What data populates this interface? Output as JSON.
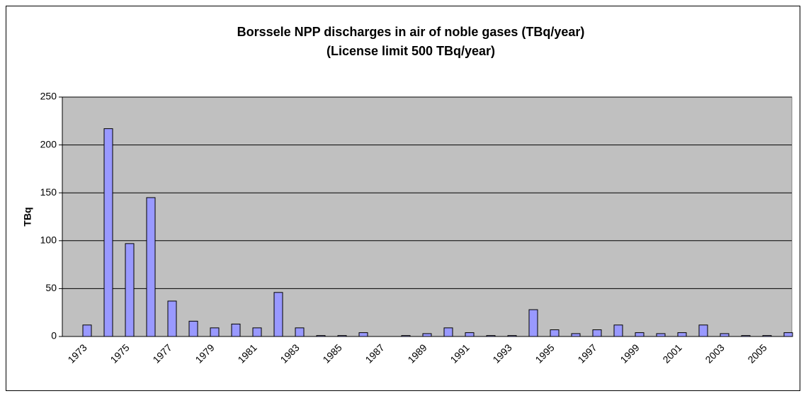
{
  "chart_data": {
    "type": "bar",
    "title": "Borssele NPP discharges in air of noble gases (TBq/year)",
    "subtitle": "(License limit  500 TBq/year)",
    "y_label": "TBq",
    "categories": [
      "1973",
      null,
      "1975",
      null,
      "1977",
      null,
      "1979",
      null,
      "1981",
      null,
      "1983",
      null,
      "1985",
      null,
      "1987",
      null,
      "1989",
      null,
      "1991",
      null,
      "1993",
      null,
      "1995",
      null,
      "1997",
      null,
      "1999",
      null,
      "2001",
      null,
      "2003",
      null,
      "2005",
      null
    ],
    "values": [
      12,
      217,
      97,
      145,
      37,
      16,
      9,
      13,
      9,
      46,
      9,
      1,
      1,
      4,
      0,
      1,
      3,
      9,
      4,
      1,
      1,
      28,
      7,
      3,
      7,
      12,
      4,
      3,
      4,
      12,
      3,
      1,
      1,
      4
    ],
    "color": "#9999ff",
    "ylim": [
      0,
      250
    ],
    "yticks": [
      0,
      50,
      100,
      150,
      200,
      250
    ],
    "grid": true
  }
}
